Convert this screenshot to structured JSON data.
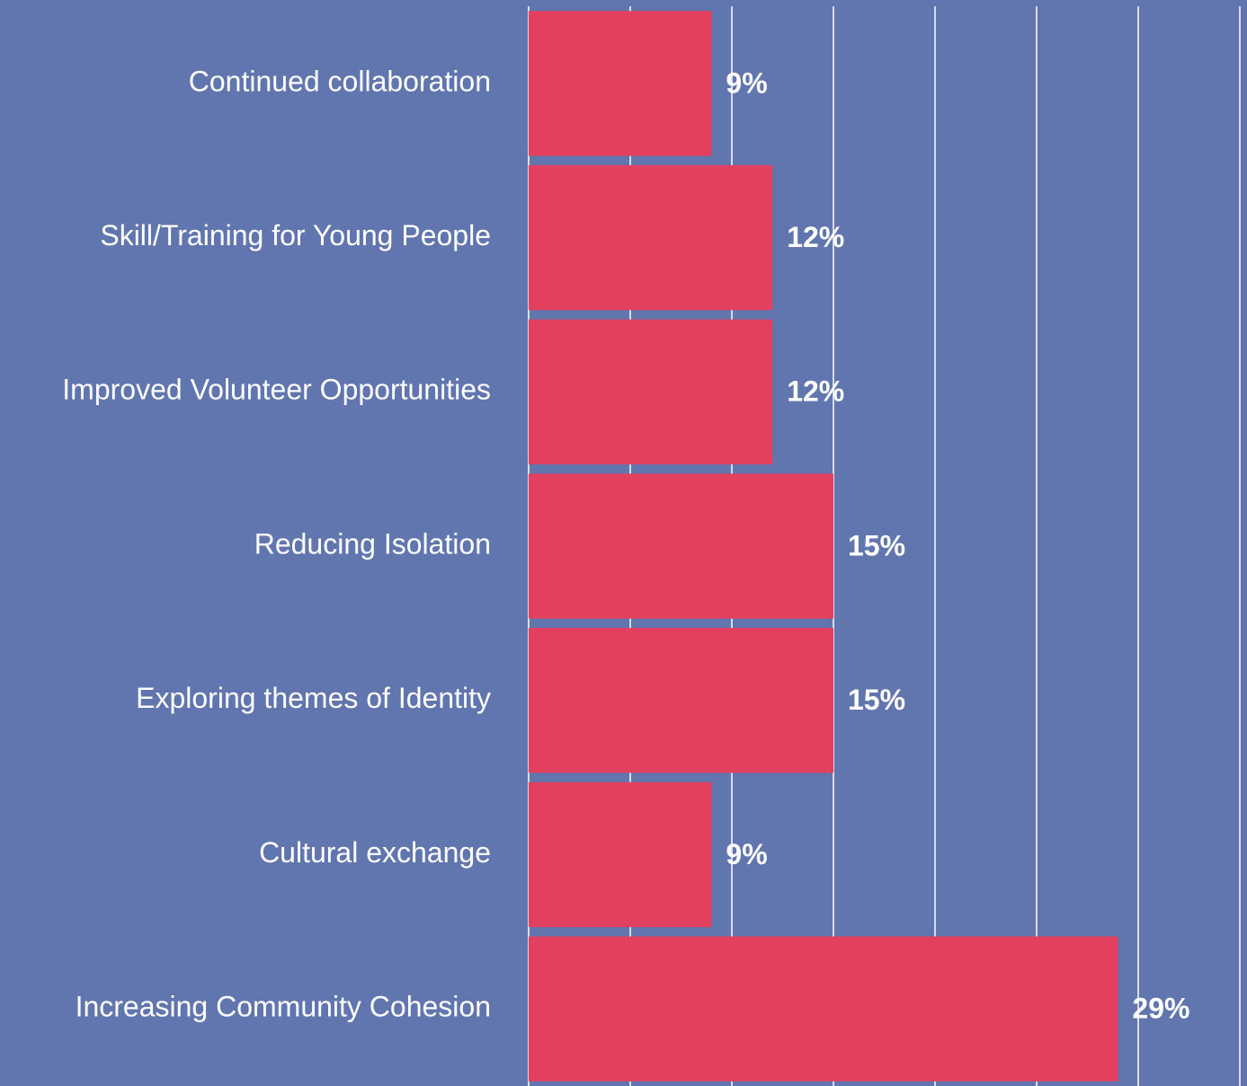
{
  "chart_data": {
    "type": "bar",
    "orientation": "horizontal",
    "categories": [
      "Continued collaboration",
      "Skill/Training for Young People",
      "Improved Volunteer Opportunities",
      "Reducing Isolation",
      "Exploring themes of Identity",
      "Cultural exchange",
      "Increasing Community Cohesion"
    ],
    "values": [
      9,
      12,
      12,
      15,
      15,
      9,
      29
    ],
    "value_labels": [
      "9%",
      "12%",
      "12%",
      "15%",
      "15%",
      "9%",
      "29%"
    ],
    "color": "#e33f5f",
    "xlim": [
      0,
      35
    ],
    "xticks": [
      0,
      5,
      10,
      15,
      20,
      25,
      30,
      35
    ],
    "grid": true
  }
}
